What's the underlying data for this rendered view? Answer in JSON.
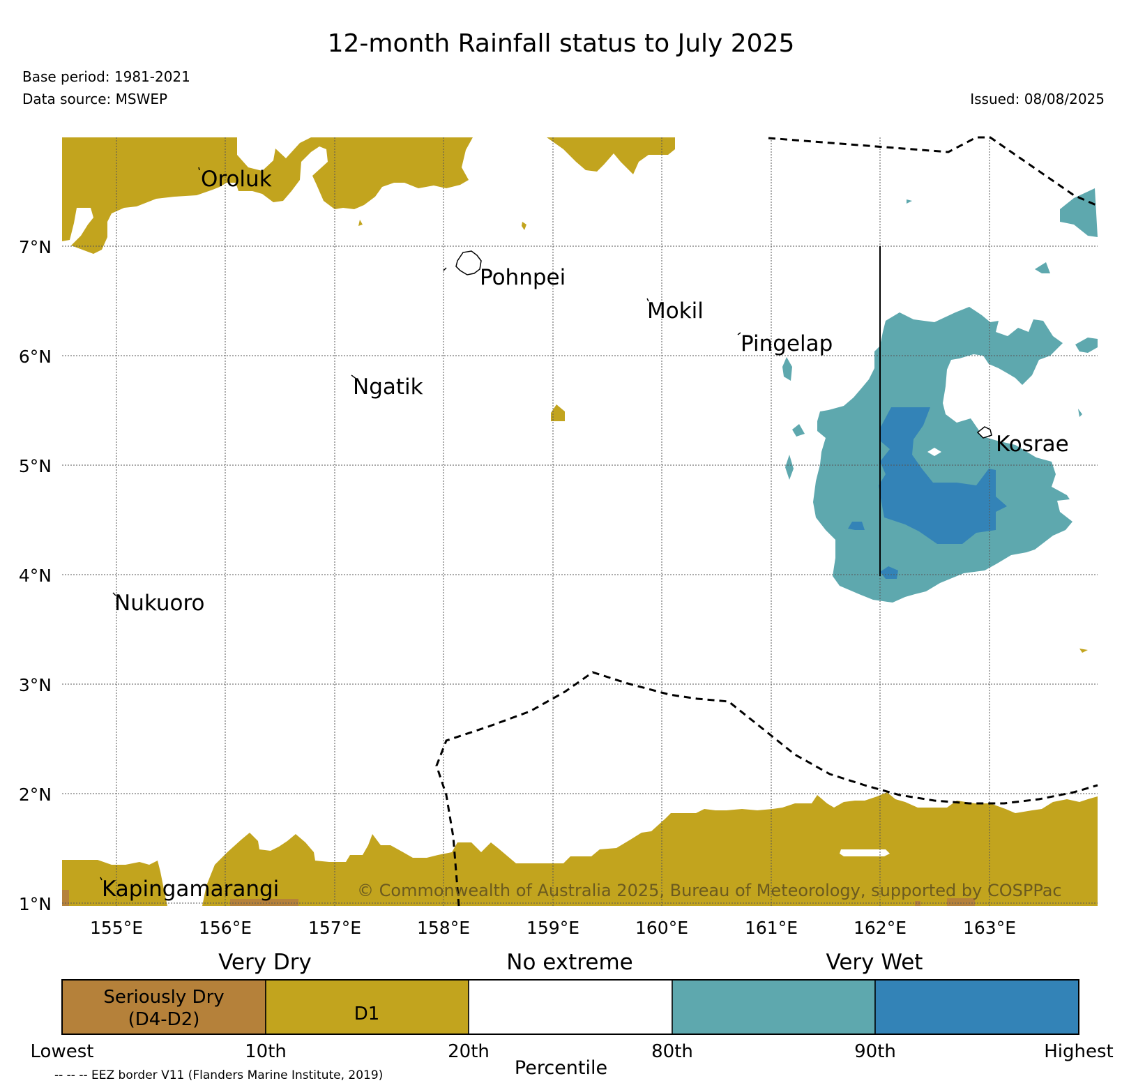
{
  "header": {
    "title": "12-month Rainfall status to July 2025",
    "base_period": "Base period: 1981-2021",
    "data_source": "Data source: MSWEP",
    "issued": "Issued: 08/08/2025"
  },
  "map": {
    "lat_labels": [
      "7°N",
      "6°N",
      "5°N",
      "4°N",
      "3°N",
      "2°N",
      "1°N"
    ],
    "lon_labels": [
      "155°E",
      "156°E",
      "157°E",
      "158°E",
      "159°E",
      "160°E",
      "161°E",
      "162°E",
      "163°E"
    ],
    "places": {
      "oroluk": "Oroluk",
      "pohnpei": "Pohnpei",
      "mokil": "Mokil",
      "pingelap": "Pingelap",
      "ngatik": "Ngatik",
      "kosrae": "Kosrae",
      "nukuoro": "Nukuoro",
      "kapingamarangi": "Kapingamarangi"
    },
    "copyright": "© Commonwealth of Australia 2025, Bureau of Meteorology, supported by COSPPac",
    "colors": {
      "seriously_dry": "#b5813a",
      "d1": "#c2a41e",
      "no_extreme": "#ffffff",
      "very_wet_80_90": "#5ea8ae",
      "very_wet_90_plus": "#3383b7"
    }
  },
  "legend": {
    "group_labels": {
      "very_dry": "Very Dry",
      "no_extreme": "No extreme",
      "very_wet": "Very Wet"
    },
    "boxes": {
      "seriously_dry_line1": "Seriously Dry",
      "seriously_dry_line2": "(D4-D2)",
      "d1": "D1"
    },
    "ticks": [
      "Lowest",
      "10th",
      "20th",
      "80th",
      "90th",
      "Highest"
    ],
    "axis_label": "Percentile",
    "eez_note": "-- -- -- EEZ border V11 (Flanders Marine Institute, 2019)"
  }
}
